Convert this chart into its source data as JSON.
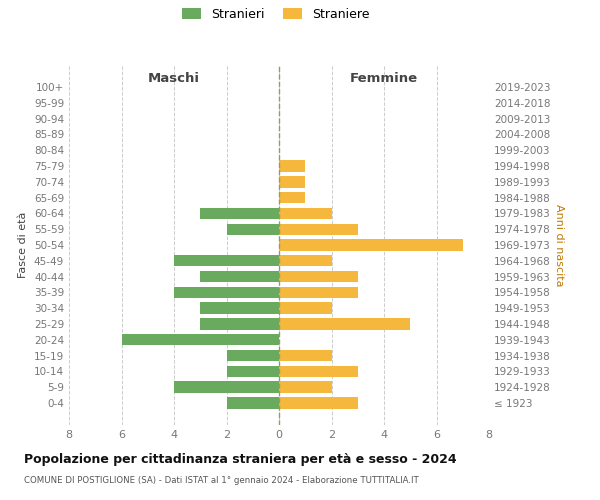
{
  "age_groups": [
    "100+",
    "95-99",
    "90-94",
    "85-89",
    "80-84",
    "75-79",
    "70-74",
    "65-69",
    "60-64",
    "55-59",
    "50-54",
    "45-49",
    "40-44",
    "35-39",
    "30-34",
    "25-29",
    "20-24",
    "15-19",
    "10-14",
    "5-9",
    "0-4"
  ],
  "birth_years": [
    "≤ 1923",
    "1924-1928",
    "1929-1933",
    "1934-1938",
    "1939-1943",
    "1944-1948",
    "1949-1953",
    "1954-1958",
    "1959-1963",
    "1964-1968",
    "1969-1973",
    "1974-1978",
    "1979-1983",
    "1984-1988",
    "1989-1993",
    "1994-1998",
    "1999-2003",
    "2004-2008",
    "2009-2013",
    "2014-2018",
    "2019-2023"
  ],
  "males": [
    0,
    0,
    0,
    0,
    0,
    0,
    0,
    0,
    3,
    2,
    0,
    4,
    3,
    4,
    3,
    3,
    6,
    2,
    2,
    4,
    2
  ],
  "females": [
    0,
    0,
    0,
    0,
    0,
    1,
    1,
    1,
    2,
    3,
    7,
    2,
    3,
    3,
    2,
    5,
    0,
    2,
    3,
    2,
    3
  ],
  "male_color": "#6aaa5e",
  "female_color": "#f5b83d",
  "background_color": "#ffffff",
  "grid_color": "#cccccc",
  "center_line_color": "#999966",
  "title": "Popolazione per cittadinanza straniera per età e sesso - 2024",
  "subtitle": "COMUNE DI POSTIGLIONE (SA) - Dati ISTAT al 1° gennaio 2024 - Elaborazione TUTTITALIA.IT",
  "label_maschi": "Maschi",
  "label_femmine": "Femmine",
  "label_fasce": "Fasce di età",
  "label_anni": "Anni di nascita",
  "legend_male": "Stranieri",
  "legend_female": "Straniere",
  "xlim": 8,
  "bar_height": 0.72,
  "tick_color": "#777777",
  "label_color": "#444444",
  "anni_color": "#c07a00"
}
